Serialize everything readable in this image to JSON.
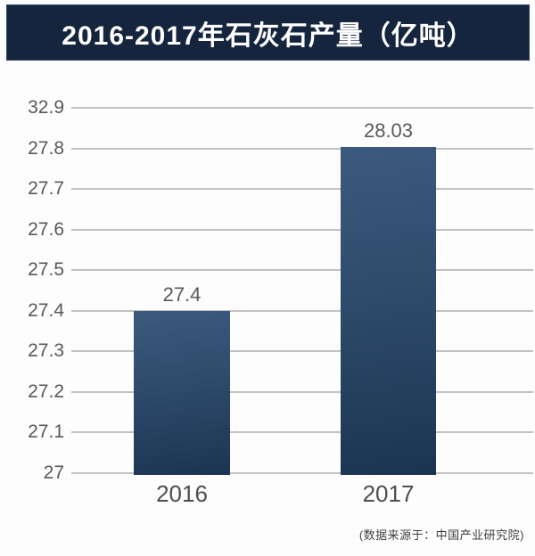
{
  "header": {
    "title": "2016-2017年石灰石产量（亿吨）"
  },
  "chart_data": {
    "type": "bar",
    "title": "2016-2017年石灰石产量（亿吨）",
    "categories": [
      "2016",
      "2017"
    ],
    "values": [
      27.4,
      28.03
    ],
    "value_labels": [
      "27.4",
      "28.03"
    ],
    "yticks": [
      "32.9",
      "27.8",
      "27.7",
      "27.6",
      "27.5",
      "27.4",
      "27.3",
      "27.2",
      "27.1",
      "27"
    ],
    "ylim": [
      27,
      32.9
    ],
    "xlabel": "",
    "ylabel": "",
    "grid": true,
    "legend": false
  },
  "footer": {
    "source": "(数据来源于：中国产业研究院)"
  },
  "theme": {
    "header_bg": "#16253e",
    "header_text": "#ffffff",
    "bar_gradient_top": "#3b5a7e",
    "bar_gradient_mid": "#2e4b6b",
    "bar_gradient_bottom": "#1c3453",
    "gridline": "#c2c2c2",
    "tick_text": "#595959",
    "value_text": "#595959",
    "category_text": "#4f4f4f",
    "source_text": "#3f3f3f",
    "background": "#fdfdfd"
  }
}
